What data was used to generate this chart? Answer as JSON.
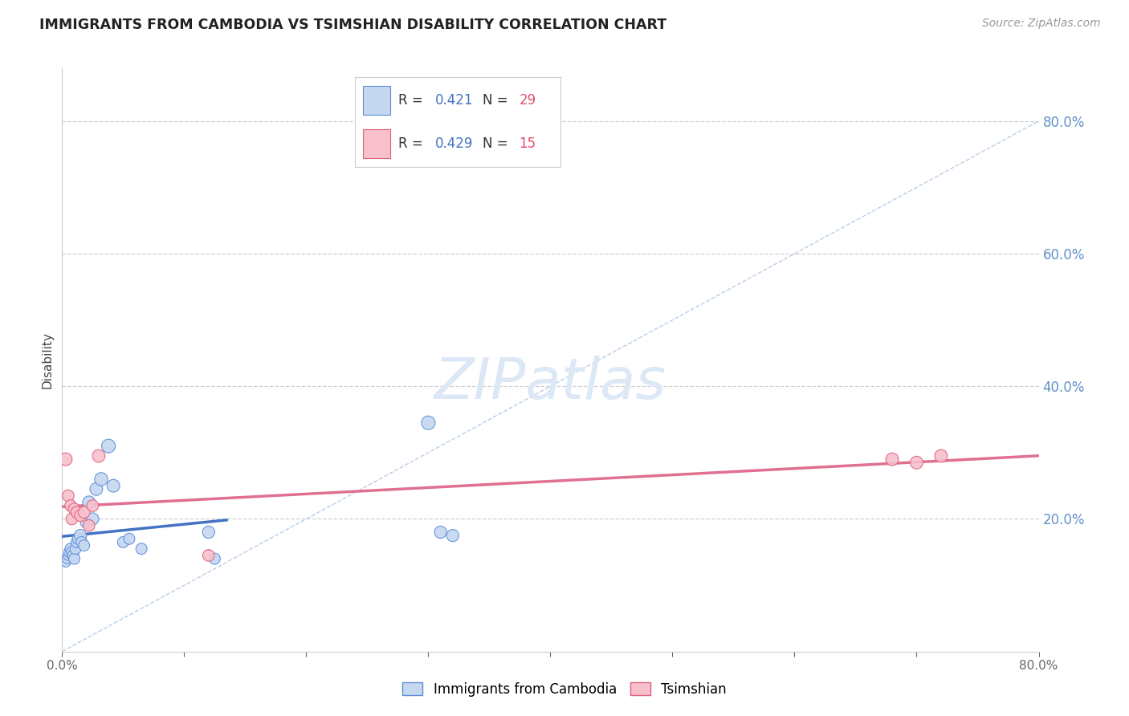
{
  "title": "IMMIGRANTS FROM CAMBODIA VS TSIMSHIAN DISABILITY CORRELATION CHART",
  "source": "Source: ZipAtlas.com",
  "ylabel": "Disability",
  "r_cambodia": 0.421,
  "n_cambodia": 29,
  "r_tsimshian": 0.429,
  "n_tsimshian": 15,
  "ytick_vals": [
    0.2,
    0.4,
    0.6,
    0.8
  ],
  "xlim": [
    0.0,
    0.8
  ],
  "ylim": [
    0.0,
    0.88
  ],
  "cambodia_scatter_x": [
    0.003,
    0.004,
    0.005,
    0.006,
    0.007,
    0.008,
    0.009,
    0.01,
    0.011,
    0.012,
    0.013,
    0.015,
    0.016,
    0.018,
    0.02,
    0.022,
    0.025,
    0.028,
    0.032,
    0.038,
    0.042,
    0.05,
    0.055,
    0.065,
    0.12,
    0.125,
    0.3,
    0.31,
    0.32
  ],
  "cambodia_scatter_y": [
    0.135,
    0.14,
    0.145,
    0.15,
    0.155,
    0.15,
    0.145,
    0.14,
    0.155,
    0.165,
    0.17,
    0.175,
    0.165,
    0.16,
    0.195,
    0.225,
    0.2,
    0.245,
    0.26,
    0.31,
    0.25,
    0.165,
    0.17,
    0.155,
    0.18,
    0.14,
    0.345,
    0.18,
    0.175
  ],
  "cambodia_scatter_sizes": [
    80,
    80,
    80,
    100,
    100,
    100,
    100,
    100,
    100,
    100,
    100,
    120,
    100,
    100,
    120,
    130,
    120,
    130,
    140,
    150,
    130,
    100,
    100,
    100,
    120,
    100,
    150,
    120,
    120
  ],
  "tsimshian_scatter_x": [
    0.003,
    0.005,
    0.007,
    0.008,
    0.01,
    0.012,
    0.015,
    0.018,
    0.022,
    0.025,
    0.03,
    0.12,
    0.68,
    0.7,
    0.72
  ],
  "tsimshian_scatter_y": [
    0.29,
    0.235,
    0.22,
    0.2,
    0.215,
    0.21,
    0.205,
    0.21,
    0.19,
    0.22,
    0.295,
    0.145,
    0.29,
    0.285,
    0.295
  ],
  "tsimshian_scatter_sizes": [
    130,
    110,
    110,
    110,
    110,
    110,
    110,
    110,
    110,
    110,
    130,
    110,
    130,
    130,
    130
  ],
  "color_cambodia_fill": "#c5d8f0",
  "color_cambodia_edge": "#5b8dd9",
  "color_cambodia_line": "#4472c4",
  "color_tsimshian_fill": "#f7c0cc",
  "color_tsimshian_edge": "#e0607a",
  "color_tsimshian_line": "#e07090",
  "color_diagonal": "#b0c8e8",
  "bg_color": "#ffffff",
  "grid_color": "#d0d0d0",
  "right_axis_color": "#6090c8",
  "title_color": "#222222",
  "legend_r_color_blue": "#4472c4",
  "legend_n_color_orange": "#e05070",
  "watermark_color": "#dce8f5"
}
